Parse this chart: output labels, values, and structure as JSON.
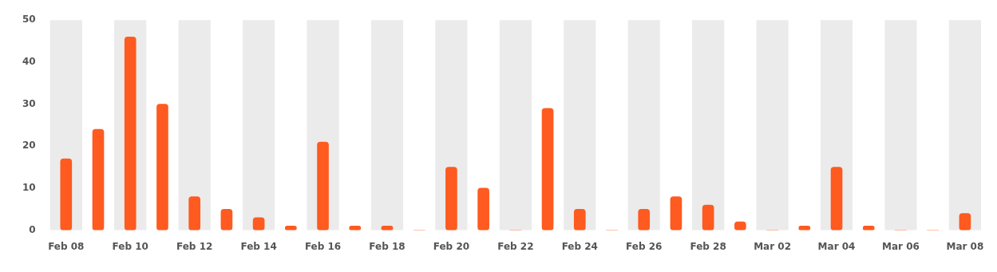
{
  "chart_data": {
    "type": "bar",
    "categories": [
      "Feb 08",
      null,
      "Feb 10",
      null,
      "Feb 12",
      null,
      "Feb 14",
      null,
      "Feb 16",
      null,
      "Feb 18",
      null,
      "Feb 20",
      null,
      "Feb 22",
      null,
      "Feb 24",
      null,
      "Feb 26",
      null,
      "Feb 28",
      null,
      "Mar 02",
      null,
      "Mar 04",
      null,
      "Mar 06",
      null,
      "Mar 08"
    ],
    "values": [
      17,
      24,
      46,
      30,
      8,
      5,
      3,
      1,
      21,
      1,
      1,
      0,
      15,
      10,
      0,
      29,
      5,
      0,
      5,
      8,
      6,
      2,
      0,
      1,
      15,
      1,
      0,
      0,
      4
    ],
    "color": "#ff5a1f",
    "ylim": [
      0,
      50
    ],
    "yticks": [
      0,
      10,
      20,
      30,
      40,
      50
    ],
    "grid": false,
    "legend": false,
    "bands": [
      {
        "axis": "x",
        "from": "Feb 08",
        "to": "Feb 08",
        "color": "#ebebeb"
      },
      {
        "axis": "x",
        "from": "Feb 10",
        "to": "Feb 10",
        "color": "#ebebeb"
      },
      {
        "axis": "x",
        "from": "Feb 12",
        "to": "Feb 12",
        "color": "#ebebeb"
      },
      {
        "axis": "x",
        "from": "Feb 14",
        "to": "Feb 14",
        "color": "#ebebeb"
      },
      {
        "axis": "x",
        "from": "Feb 16",
        "to": "Feb 16",
        "color": "#ebebeb"
      },
      {
        "axis": "x",
        "from": "Feb 18",
        "to": "Feb 18",
        "color": "#ebebeb"
      },
      {
        "axis": "x",
        "from": "Feb 20",
        "to": "Feb 20",
        "color": "#ebebeb"
      },
      {
        "axis": "x",
        "from": "Feb 22",
        "to": "Feb 22",
        "color": "#ebebeb"
      },
      {
        "axis": "x",
        "from": "Feb 24",
        "to": "Feb 24",
        "color": "#ebebeb"
      },
      {
        "axis": "x",
        "from": "Feb 26",
        "to": "Feb 26",
        "color": "#ebebeb"
      },
      {
        "axis": "x",
        "from": "Feb 28",
        "to": "Feb 28",
        "color": "#ebebeb"
      },
      {
        "axis": "x",
        "from": "Mar 02",
        "to": "Mar 02",
        "color": "#ebebeb"
      },
      {
        "axis": "x",
        "from": "Mar 04",
        "to": "Mar 04",
        "color": "#ebebeb"
      },
      {
        "axis": "x",
        "from": "Mar 06",
        "to": "Mar 06",
        "color": "#ebebeb"
      },
      {
        "axis": "x",
        "from": "Mar 08",
        "to": "Mar 08",
        "color": "#ebebeb"
      }
    ]
  }
}
